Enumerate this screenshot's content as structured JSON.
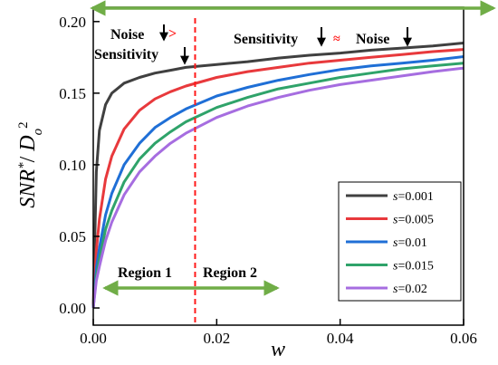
{
  "chart_data": {
    "type": "line",
    "xlabel": "w",
    "ylabel_main": "SNR",
    "ylabel_sup": "*",
    "ylabel_mid": "/ ",
    "ylabel_d": "D",
    "ylabel_sub": "o",
    "ylabel_sup2": "2",
    "xlim": [
      0,
      0.06
    ],
    "ylim": [
      -0.012,
      0.21
    ],
    "x_ticks": [
      0.0,
      0.02,
      0.04,
      0.06
    ],
    "x_tick_labels": [
      "0.00",
      "0.02",
      "0.04",
      "0.06"
    ],
    "y_ticks": [
      0.0,
      0.05,
      0.1,
      0.15,
      0.2
    ],
    "y_tick_labels": [
      "0.00",
      "0.05",
      "0.10",
      "0.15",
      "0.20"
    ],
    "x": [
      0,
      0.0005,
      0.001,
      0.002,
      0.003,
      0.005,
      0.0075,
      0.01,
      0.0125,
      0.015,
      0.02,
      0.025,
      0.03,
      0.035,
      0.04,
      0.045,
      0.05,
      0.055,
      0.06
    ],
    "series": [
      {
        "name": "s=0.001",
        "s_prefix": "s",
        "s_value": "=0.001",
        "color": "#404040",
        "values": [
          0,
          0.095,
          0.124,
          0.142,
          0.15,
          0.157,
          0.161,
          0.164,
          0.166,
          0.168,
          0.17,
          0.172,
          0.1745,
          0.1765,
          0.178,
          0.18,
          0.1815,
          0.183,
          0.185
        ]
      },
      {
        "name": "s=0.005",
        "s_prefix": "s",
        "s_value": "=0.005",
        "color": "#e8393c",
        "values": [
          0,
          0.04,
          0.062,
          0.09,
          0.106,
          0.125,
          0.138,
          0.146,
          0.151,
          0.155,
          0.161,
          0.165,
          0.168,
          0.171,
          0.173,
          0.175,
          0.177,
          0.179,
          0.1805
        ]
      },
      {
        "name": "s=0.01",
        "s_prefix": "s",
        "s_value": "=0.01",
        "color": "#1f6fd6",
        "values": [
          0,
          0.028,
          0.042,
          0.065,
          0.08,
          0.1,
          0.115,
          0.126,
          0.133,
          0.139,
          0.148,
          0.154,
          0.159,
          0.163,
          0.1665,
          0.169,
          0.171,
          0.173,
          0.1755
        ]
      },
      {
        "name": "s=0.015",
        "s_prefix": "s",
        "s_value": "=0.015",
        "color": "#2fa36a",
        "values": [
          0,
          0.022,
          0.034,
          0.055,
          0.068,
          0.088,
          0.104,
          0.115,
          0.123,
          0.13,
          0.14,
          0.147,
          0.153,
          0.157,
          0.161,
          0.164,
          0.167,
          0.169,
          0.171
        ]
      },
      {
        "name": "s=0.02",
        "s_prefix": "s",
        "s_value": "=0.02",
        "color": "#a66de0",
        "values": [
          0,
          0.019,
          0.029,
          0.047,
          0.06,
          0.079,
          0.095,
          0.106,
          0.115,
          0.122,
          0.133,
          0.141,
          0.147,
          0.152,
          0.156,
          0.159,
          0.162,
          0.165,
          0.1675
        ]
      }
    ],
    "divider_x": 0.0165,
    "divider_color": "#ff1a1a",
    "arrow_color": "#70ad47",
    "annotations": {
      "left_word1": "Noise",
      "left_gt": ">",
      "left_word2": "Sensitivity",
      "right_word1": "Sensitivity",
      "right_approx": "≈",
      "right_word2": "Noise",
      "region1": "Region 1",
      "region2": "Region 2"
    },
    "legend_position": "lower-right",
    "grid": false
  }
}
